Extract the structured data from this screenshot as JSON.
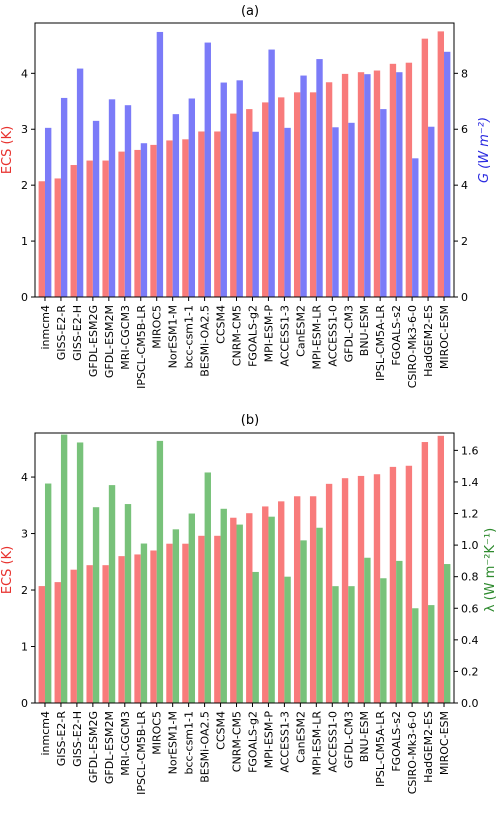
{
  "colors": {
    "ecs": "#f87b7b",
    "g": "#7b7bf8",
    "lambda": "#78c27a"
  },
  "chart_data": [
    {
      "type": "bar",
      "title": "(a)",
      "ylabel_left": "ECS (K)",
      "ylabel_right": "G (W m⁻²)",
      "ylim_left": [
        0,
        4.9
      ],
      "ylim_right": [
        0,
        9.8
      ],
      "yticks_left": [
        "0",
        "1",
        "2",
        "3",
        "4"
      ],
      "yticks_right": [
        "0",
        "2",
        "4",
        "6",
        "8"
      ],
      "grid": false,
      "categories": [
        "inmcm4",
        "GISS-E2-R",
        "GISS-E2-H",
        "GFDL-ESM2G",
        "GFDL-ESM2M",
        "MRI-CGCM3",
        "IPSCL-CM5B-LR",
        "MIROC5",
        "NorESM1-M",
        "bcc-csm1-1",
        "BESMi-OA2.5",
        "CCSM4",
        "CNRM-CM5",
        "FGOALS-g2",
        "MPI-ESM-P",
        "ACCESS1-3",
        "CanESM2",
        "MPI-ESM-LR",
        "ACCESS1-0",
        "GFDL-CM3",
        "BNU-ESM",
        "IPSL-CM5A-LR",
        "FGOALS-s2",
        "CSIRO-Mk3-6-0",
        "HadGEM2-ES",
        "MIROC-ESM"
      ],
      "series": [
        {
          "axis": "left",
          "values": [
            2.07,
            2.12,
            2.36,
            2.44,
            2.44,
            2.6,
            2.63,
            2.72,
            2.8,
            2.82,
            2.96,
            2.96,
            3.28,
            3.36,
            3.48,
            3.57,
            3.66,
            3.66,
            3.84,
            3.99,
            4.02,
            4.05,
            4.17,
            4.19,
            4.62,
            4.75
          ]
        },
        {
          "axis": "right",
          "values": [
            6.05,
            7.12,
            8.17,
            6.3,
            7.07,
            6.86,
            5.5,
            9.48,
            6.54,
            7.1,
            9.1,
            7.67,
            7.75,
            5.91,
            8.85,
            6.05,
            7.92,
            8.51,
            6.07,
            6.23,
            7.97,
            6.72,
            8.04,
            4.96,
            6.09,
            8.77
          ]
        }
      ]
    },
    {
      "type": "bar",
      "title": "(b)",
      "ylabel_left": "ECS (K)",
      "ylabel_right": "λ (W m⁻²K⁻¹)",
      "ylim_left": [
        0,
        4.78
      ],
      "ylim_right": [
        0,
        1.71
      ],
      "yticks_left": [
        "0",
        "1",
        "2",
        "3",
        "4"
      ],
      "yticks_right": [
        "0.0",
        "0.2",
        "0.4",
        "0.6",
        "0.8",
        "1.0",
        "1.2",
        "1.4",
        "1.6"
      ],
      "grid": false,
      "categories": [
        "inmcm4",
        "GISS-E2-R",
        "GISS-E2-H",
        "GFDL-ESM2G",
        "GFDL-ESM2M",
        "MRI-CGCM3",
        "IPSCL-CM5B-LR",
        "MIROC5",
        "NorESM1-M",
        "bcc-csm1-1",
        "BESMi-OA2.5",
        "CCSM4",
        "CNRM-CM5",
        "FGOALS-g2",
        "MPI-ESM-P",
        "ACCESS1-3",
        "CanESM2",
        "MPI-ESM-LR",
        "ACCESS1-0",
        "GFDL-CM3",
        "BNU-ESM",
        "IPSL-CM5A-LR",
        "FGOALS-s2",
        "CSIRO-Mk3-6-0",
        "HadGEM2-ES",
        "MIROC-ESM"
      ],
      "series": [
        {
          "axis": "left",
          "values": [
            2.07,
            2.14,
            2.36,
            2.44,
            2.44,
            2.6,
            2.63,
            2.7,
            2.82,
            2.82,
            2.96,
            2.96,
            3.28,
            3.36,
            3.48,
            3.57,
            3.66,
            3.66,
            3.88,
            3.98,
            4.02,
            4.05,
            4.18,
            4.2,
            4.62,
            4.73
          ]
        },
        {
          "axis": "right",
          "values": [
            1.39,
            1.7,
            1.65,
            1.24,
            1.38,
            1.26,
            1.01,
            1.66,
            1.1,
            1.2,
            1.46,
            1.23,
            1.13,
            0.83,
            1.18,
            0.8,
            1.03,
            1.11,
            0.74,
            0.74,
            0.92,
            0.79,
            0.9,
            0.6,
            0.62,
            0.88
          ]
        }
      ]
    }
  ]
}
